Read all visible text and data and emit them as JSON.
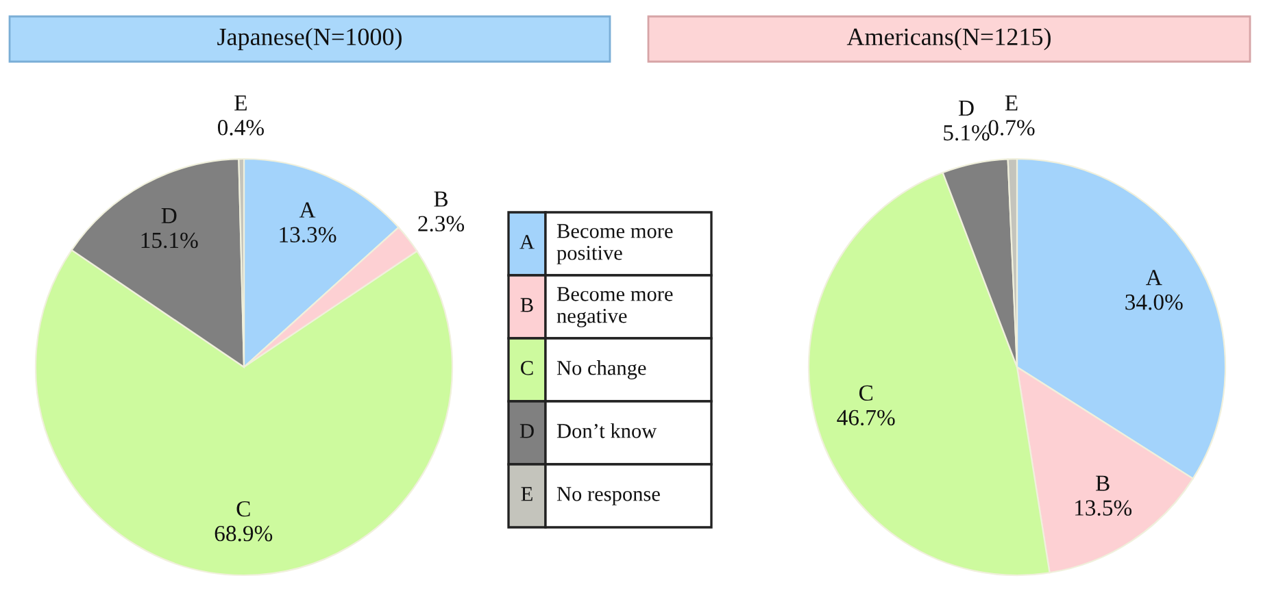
{
  "chart_data": [
    {
      "type": "pie",
      "title": "Japanese(N=1000)",
      "categories": [
        "A",
        "B",
        "C",
        "D",
        "E"
      ],
      "values": [
        13.3,
        2.3,
        68.9,
        15.1,
        0.4
      ],
      "value_labels": [
        "13.3%",
        "2.3%",
        "68.9%",
        "15.1%",
        "0.4%"
      ],
      "colors": [
        "#a3d3fb",
        "#fdd0d3",
        "#cdfa9e",
        "#808080",
        "#c4c4bc"
      ]
    },
    {
      "type": "other",
      "categories": [
        "A",
        "B",
        "C",
        "D",
        "E"
      ],
      "colors": [
        "#a3d3fb",
        "#fdd0d3",
        "#cdfa9e",
        "#808080",
        "#c4c4bc"
      ],
      "annotations": [
        "Become more positive",
        "Become more negative",
        "No change",
        "Don’t know",
        "No response"
      ]
    },
    {
      "type": "pie",
      "title": "Americans(N=1215)",
      "categories": [
        "A",
        "B",
        "C",
        "D",
        "E"
      ],
      "values": [
        34.0,
        13.5,
        46.7,
        5.1,
        0.7
      ],
      "value_labels": [
        "34.0%",
        "13.5%",
        "46.7%",
        "5.1%",
        "0.7%"
      ],
      "colors": [
        "#a3d3fb",
        "#fdd0d3",
        "#cdfa9e",
        "#808080",
        "#c4c4bc"
      ]
    }
  ]
}
